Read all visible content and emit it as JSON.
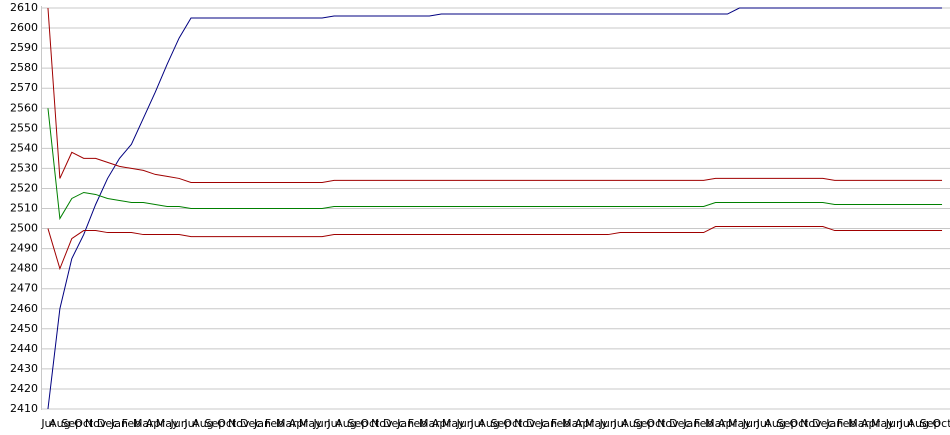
{
  "chart_data": {
    "type": "line",
    "categories": [
      "Jul",
      "Aug",
      "Sep",
      "Oct",
      "Nov",
      "Dec",
      "Jan",
      "Feb",
      "Mar",
      "Apr",
      "May",
      "Jun",
      "Jul",
      "Aug",
      "Sep",
      "Oct",
      "Nov",
      "Dec",
      "Jan",
      "Feb",
      "Mar",
      "Apr",
      "May",
      "Jun",
      "Jul",
      "Aug",
      "Sep",
      "Oct",
      "Nov",
      "Dec",
      "Jan",
      "Feb",
      "Mar",
      "Apr",
      "May",
      "Jun",
      "Jul",
      "Aug",
      "Sep",
      "Oct",
      "Nov",
      "Dec",
      "Jan",
      "Feb",
      "Mar",
      "Apr",
      "May",
      "Jun",
      "Jul",
      "Aug",
      "Sep",
      "Oct",
      "Nov",
      "Dec",
      "Jan",
      "Feb",
      "Mar",
      "Apr",
      "May",
      "Jun",
      "Jul",
      "Aug",
      "Sep",
      "Oct",
      "Nov",
      "Dec",
      "Jan",
      "Feb",
      "Mar",
      "Apr",
      "May",
      "Jun",
      "Jul",
      "Aug",
      "Sep",
      "Oct"
    ],
    "series": [
      {
        "color": "#000080",
        "values": [
          2410,
          2460,
          2485,
          2497,
          2512,
          2525,
          2535,
          2542,
          2555,
          2568,
          2582,
          2595,
          2605,
          2605,
          2605,
          2605,
          2605,
          2605,
          2605,
          2605,
          2605,
          2605,
          2605,
          2605,
          2606,
          2606,
          2606,
          2606,
          2606,
          2606,
          2606,
          2606,
          2606,
          2607,
          2607,
          2607,
          2607,
          2607,
          2607,
          2607,
          2607,
          2607,
          2607,
          2607,
          2607,
          2607,
          2607,
          2607,
          2607,
          2607,
          2607,
          2607,
          2607,
          2607,
          2607,
          2607,
          2607,
          2607,
          2610,
          2610,
          2610,
          2610,
          2610,
          2610,
          2610,
          2610,
          2610,
          2610,
          2610,
          2610,
          2610,
          2610,
          2610,
          2610,
          2610,
          2610
        ]
      },
      {
        "color": "#a00000",
        "values": [
          2610,
          2525,
          2538,
          2535,
          2535,
          2533,
          2531,
          2530,
          2529,
          2527,
          2526,
          2525,
          2523,
          2523,
          2523,
          2523,
          2523,
          2523,
          2523,
          2523,
          2523,
          2523,
          2523,
          2523,
          2524,
          2524,
          2524,
          2524,
          2524,
          2524,
          2524,
          2524,
          2524,
          2524,
          2524,
          2524,
          2524,
          2524,
          2524,
          2524,
          2524,
          2524,
          2524,
          2524,
          2524,
          2524,
          2524,
          2524,
          2524,
          2524,
          2524,
          2524,
          2524,
          2524,
          2524,
          2524,
          2525,
          2525,
          2525,
          2525,
          2525,
          2525,
          2525,
          2525,
          2525,
          2525,
          2524,
          2524,
          2524,
          2524,
          2524,
          2524,
          2524,
          2524,
          2524,
          2524
        ]
      },
      {
        "color": "#008000",
        "values": [
          2560,
          2505,
          2515,
          2518,
          2517,
          2515,
          2514,
          2513,
          2513,
          2512,
          2511,
          2511,
          2510,
          2510,
          2510,
          2510,
          2510,
          2510,
          2510,
          2510,
          2510,
          2510,
          2510,
          2510,
          2511,
          2511,
          2511,
          2511,
          2511,
          2511,
          2511,
          2511,
          2511,
          2511,
          2511,
          2511,
          2511,
          2511,
          2511,
          2511,
          2511,
          2511,
          2511,
          2511,
          2511,
          2511,
          2511,
          2511,
          2511,
          2511,
          2511,
          2511,
          2511,
          2511,
          2511,
          2511,
          2513,
          2513,
          2513,
          2513,
          2513,
          2513,
          2513,
          2513,
          2513,
          2513,
          2512,
          2512,
          2512,
          2512,
          2512,
          2512,
          2512,
          2512,
          2512,
          2512
        ]
      },
      {
        "color": "#a00000",
        "values": [
          2500,
          2480,
          2495,
          2499,
          2499,
          2498,
          2498,
          2498,
          2497,
          2497,
          2497,
          2497,
          2496,
          2496,
          2496,
          2496,
          2496,
          2496,
          2496,
          2496,
          2496,
          2496,
          2496,
          2496,
          2497,
          2497,
          2497,
          2497,
          2497,
          2497,
          2497,
          2497,
          2497,
          2497,
          2497,
          2497,
          2497,
          2497,
          2497,
          2497,
          2497,
          2497,
          2497,
          2497,
          2497,
          2497,
          2497,
          2497,
          2498,
          2498,
          2498,
          2498,
          2498,
          2498,
          2498,
          2498,
          2501,
          2501,
          2501,
          2501,
          2501,
          2501,
          2501,
          2501,
          2501,
          2501,
          2499,
          2499,
          2499,
          2499,
          2499,
          2499,
          2499,
          2499,
          2499,
          2499
        ]
      }
    ],
    "ylim": [
      2410,
      2610
    ],
    "yticks": [
      2410,
      2420,
      2430,
      2440,
      2450,
      2460,
      2470,
      2480,
      2490,
      2500,
      2510,
      2520,
      2530,
      2540,
      2550,
      2560,
      2570,
      2580,
      2590,
      2600,
      2610
    ],
    "grid": true
  }
}
